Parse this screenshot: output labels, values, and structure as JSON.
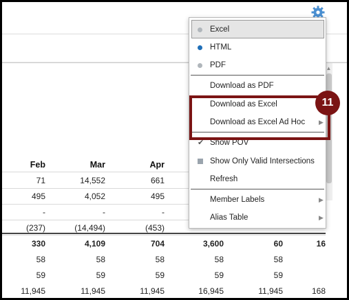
{
  "columns": [
    {
      "header": "Feb",
      "values": [
        "71",
        "495",
        "-",
        "(237)",
        "330",
        "58",
        "59",
        "11,945"
      ]
    },
    {
      "header": "Mar",
      "values": [
        "14,552",
        "4,052",
        "-",
        "(14,494)",
        "4,109",
        "58",
        "59",
        "11,945"
      ]
    },
    {
      "header": "Apr",
      "values": [
        "661",
        "495",
        "-",
        "(453)",
        "704",
        "58",
        "59",
        "11,945"
      ]
    },
    {
      "header": "",
      "values": [
        "",
        "",
        "",
        "",
        "3,600",
        "58",
        "59",
        "16,945"
      ]
    },
    {
      "header": "",
      "values": [
        "",
        "",
        "",
        "",
        "60",
        "58",
        "59",
        "11,945"
      ]
    },
    {
      "header": "",
      "values": [
        "",
        "",
        "",
        "",
        "16",
        "",
        "",
        "168"
      ]
    }
  ],
  "menu": {
    "items": [
      {
        "label": "Excel",
        "marker": "dot",
        "marker_color": "#b0b6bb",
        "selected": true
      },
      {
        "label": "HTML",
        "marker": "dot",
        "marker_color": "#1f6fb8"
      },
      {
        "label": "PDF",
        "marker": "dot",
        "marker_color": "#b0b6bb"
      },
      {
        "label": "Download as PDF"
      },
      {
        "label": "Download as Excel"
      },
      {
        "label": "Download as Excel Ad Hoc",
        "submenu": true
      },
      {
        "label": "Show POV",
        "marker": "check"
      },
      {
        "label": "Show Only Valid Intersections",
        "marker": "square"
      },
      {
        "label": "Refresh"
      },
      {
        "label": "Member Labels",
        "submenu": true
      },
      {
        "label": "Alias Table",
        "submenu": true
      }
    ]
  },
  "callout_number": "11",
  "colors": {
    "callout": "#7b1414",
    "gear": "#4a8fd1",
    "radio_on": "#1f6fb8"
  }
}
